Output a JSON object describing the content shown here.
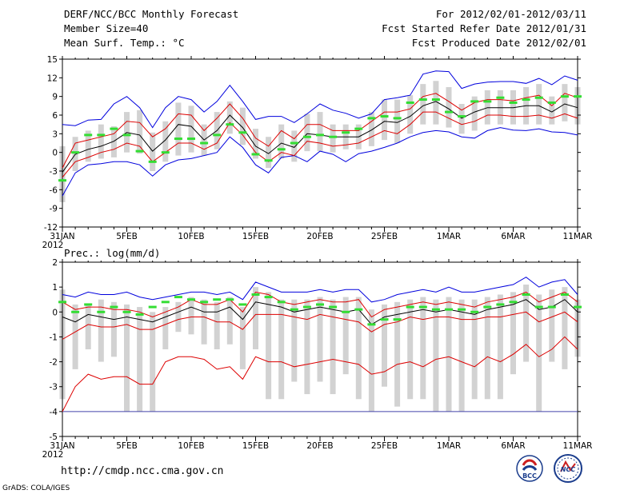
{
  "header": {
    "title": "DERF/NCC/BCC Monthly Forecast",
    "member_size": "Member Size=40",
    "variable1": "Mean Surf. Temp.: °C",
    "period": "For 2012/02/01-2012/03/11",
    "fcst_started": "Fcst Started Refer Date 2012/01/31",
    "fcst_produced": "Fcst Produced Date 2012/02/01"
  },
  "footer": {
    "url": "http://cmdp.ncc.cma.gov.cn",
    "grads": "GrADS: COLA/IGES",
    "logo_bcc": "BCC",
    "logo_ncc": "NCC"
  },
  "colors": {
    "ensemble_max": "#0000dd",
    "percentile": "#dd0000",
    "ensemble_mean": "#000000",
    "observation_marker": "#33dd33",
    "spread_bar": "#d2d2d2"
  },
  "chart_data": [
    {
      "type": "line",
      "title": "Mean Surf. Temp.: °C",
      "x_tick_labels": [
        "31JAN",
        "5FEB",
        "10FEB",
        "15FEB",
        "20FEB",
        "25FEB",
        "1MAR",
        "6MAR",
        "11MAR"
      ],
      "x_tick_days": [
        0,
        5,
        10,
        15,
        20,
        25,
        30,
        35,
        40
      ],
      "x_year_label": "2012",
      "ylim": [
        -12,
        15
      ],
      "y_ticks": [
        15,
        12,
        9,
        6,
        3,
        0,
        -3,
        -6,
        -9,
        -12
      ],
      "y_tick_labels": [
        "15",
        "12",
        "9",
        "6",
        "3",
        "0",
        "-3",
        "-6",
        "-9",
        "-12"
      ],
      "x": [
        0,
        1,
        2,
        3,
        4,
        5,
        6,
        7,
        8,
        9,
        10,
        11,
        12,
        13,
        14,
        15,
        16,
        17,
        18,
        19,
        20,
        21,
        22,
        23,
        24,
        25,
        26,
        27,
        28,
        29,
        30,
        31,
        32,
        33,
        34,
        35,
        36,
        37,
        38,
        39,
        40
      ],
      "series": [
        {
          "name": "ensemble-max",
          "color": "#0000dd",
          "values": [
            4.5,
            4.3,
            5.2,
            5.3,
            7.8,
            9.0,
            7.2,
            4.0,
            7.2,
            9.0,
            8.5,
            6.5,
            8.2,
            10.8,
            8.2,
            5.3,
            5.8,
            5.8,
            4.8,
            6.2,
            7.8,
            6.8,
            6.3,
            5.5,
            6.2,
            8.5,
            8.8,
            9.2,
            12.6,
            13.1,
            13.0,
            10.3,
            11.0,
            11.3,
            11.4,
            11.4,
            11.1,
            11.9,
            10.9,
            12.3,
            11.6
          ]
        },
        {
          "name": "ensemble-min",
          "color": "#0000dd",
          "values": [
            -7.0,
            -3.3,
            -2.0,
            -1.8,
            -1.5,
            -1.5,
            -2.0,
            -3.8,
            -2.0,
            -1.2,
            -1.0,
            -0.5,
            0.0,
            2.5,
            0.8,
            -2.0,
            -3.3,
            -0.8,
            -0.5,
            -1.5,
            0.2,
            -0.3,
            -1.5,
            -0.2,
            0.2,
            0.8,
            1.5,
            2.5,
            3.2,
            3.5,
            3.3,
            2.5,
            2.3,
            3.5,
            4.0,
            3.6,
            3.5,
            3.8,
            3.3,
            3.2,
            2.8
          ]
        },
        {
          "name": "upper-percentile",
          "color": "#dd0000",
          "values": [
            -2.5,
            1.5,
            2.0,
            2.5,
            3.0,
            5.0,
            4.8,
            2.5,
            3.8,
            6.2,
            6.0,
            3.5,
            5.5,
            7.8,
            5.5,
            2.3,
            1.0,
            3.5,
            2.2,
            4.5,
            4.5,
            3.5,
            3.5,
            3.5,
            5.0,
            6.5,
            6.5,
            7.0,
            9.0,
            9.5,
            8.2,
            6.8,
            8.0,
            8.5,
            8.5,
            8.3,
            8.8,
            9.2,
            7.5,
            9.5,
            8.8
          ]
        },
        {
          "name": "lower-percentile",
          "color": "#dd0000",
          "values": [
            -4.0,
            -1.5,
            -0.8,
            0.0,
            0.5,
            1.5,
            1.0,
            -1.5,
            0.0,
            1.5,
            1.5,
            0.5,
            1.5,
            4.8,
            2.8,
            0.0,
            -1.5,
            0.0,
            -0.5,
            1.8,
            1.5,
            1.0,
            1.2,
            1.5,
            2.5,
            3.5,
            3.0,
            4.5,
            6.5,
            6.5,
            5.5,
            4.5,
            5.0,
            6.0,
            6.0,
            5.8,
            5.8,
            6.0,
            5.5,
            6.2,
            5.5
          ]
        },
        {
          "name": "ensemble-mean",
          "color": "#000000",
          "values": [
            -3.2,
            -0.3,
            0.5,
            1.0,
            1.8,
            3.2,
            2.8,
            0.2,
            2.0,
            4.5,
            4.2,
            2.0,
            3.5,
            6.0,
            4.0,
            1.0,
            -0.2,
            1.5,
            0.8,
            3.0,
            2.8,
            2.5,
            2.5,
            2.5,
            3.6,
            5.0,
            4.8,
            5.8,
            7.5,
            8.2,
            7.0,
            5.5,
            6.5,
            7.2,
            7.2,
            7.2,
            7.5,
            7.5,
            6.5,
            7.8,
            7.2
          ]
        },
        {
          "name": "observed",
          "color": "#33dd33",
          "values": [
            -4.5,
            0.0,
            2.8,
            2.8,
            3.8,
            2.8,
            0.2,
            -1.5,
            0.0,
            2.2,
            2.2,
            1.5,
            2.8,
            4.5,
            3.2,
            -0.3,
            -1.3,
            0.5,
            1.5,
            2.5,
            2.8,
            2.5,
            3.2,
            3.8,
            5.5,
            5.8,
            5.5,
            8.0,
            8.5,
            8.5,
            6.5,
            5.8,
            8.2,
            8.2,
            8.8,
            8.0,
            8.5,
            8.8,
            8.0,
            9.0,
            9.0
          ]
        },
        {
          "name": "spread-top",
          "color": "#d2d2d2",
          "values": [
            1.0,
            2.5,
            3.5,
            4.5,
            4.2,
            6.5,
            6.8,
            3.2,
            5.0,
            8.0,
            7.5,
            4.5,
            6.5,
            8.2,
            7.2,
            3.8,
            2.5,
            4.5,
            3.5,
            6.2,
            6.5,
            4.5,
            4.5,
            4.5,
            6.5,
            8.5,
            8.5,
            9.2,
            11.0,
            11.5,
            10.5,
            7.8,
            9.0,
            10.0,
            10.0,
            10.0,
            10.5,
            11.0,
            9.0,
            11.0,
            10.5
          ]
        },
        {
          "name": "spread-bottom",
          "color": "#d2d2d2",
          "values": [
            -8.0,
            -3.0,
            -1.5,
            -1.0,
            -0.8,
            0.0,
            -0.2,
            -3.0,
            -1.5,
            -0.5,
            0.0,
            -0.5,
            0.5,
            3.0,
            1.2,
            -1.0,
            -2.5,
            -1.0,
            -1.5,
            0.2,
            0.2,
            0.0,
            0.5,
            0.5,
            1.0,
            2.0,
            1.5,
            3.0,
            4.5,
            4.5,
            4.0,
            3.0,
            3.5,
            4.5,
            4.5,
            4.5,
            4.5,
            4.5,
            4.5,
            5.0,
            4.5
          ]
        }
      ]
    },
    {
      "type": "line",
      "title": "Prec.: log(mm/d)",
      "x_tick_labels": [
        "31JAN",
        "5FEB",
        "10FEB",
        "15FEB",
        "20FEB",
        "25FEB",
        "1MAR",
        "6MAR",
        "11MAR"
      ],
      "x_tick_days": [
        0,
        5,
        10,
        15,
        20,
        25,
        30,
        35,
        40
      ],
      "x_year_label": "2012",
      "ylim": [
        -5,
        2
      ],
      "y_ticks": [
        2,
        1,
        0,
        -1,
        -2,
        -3,
        -4,
        -5
      ],
      "y_tick_labels": [
        "2",
        "1",
        "0",
        "-1",
        "-2",
        "-3",
        "-4",
        "-5"
      ],
      "x": [
        0,
        1,
        2,
        3,
        4,
        5,
        6,
        7,
        8,
        9,
        10,
        11,
        12,
        13,
        14,
        15,
        16,
        17,
        18,
        19,
        20,
        21,
        22,
        23,
        24,
        25,
        26,
        27,
        28,
        29,
        30,
        31,
        32,
        33,
        34,
        35,
        36,
        37,
        38,
        39,
        40
      ],
      "series": [
        {
          "name": "ensemble-max",
          "color": "#0000dd",
          "values": [
            0.7,
            0.6,
            0.8,
            0.7,
            0.7,
            0.8,
            0.6,
            0.5,
            0.6,
            0.7,
            0.8,
            0.8,
            0.7,
            0.8,
            0.5,
            1.2,
            1.0,
            0.8,
            0.8,
            0.8,
            0.9,
            0.8,
            0.9,
            0.9,
            0.4,
            0.5,
            0.7,
            0.8,
            0.9,
            0.8,
            1.0,
            0.8,
            0.8,
            0.9,
            1.0,
            1.1,
            1.4,
            1.0,
            1.2,
            1.3,
            0.7
          ]
        },
        {
          "name": "ensemble-min",
          "color": "#dd0000",
          "values": [
            -4.0,
            -3.0,
            -2.5,
            -2.7,
            -2.6,
            -2.6,
            -2.9,
            -2.9,
            -2.0,
            -1.8,
            -1.8,
            -1.9,
            -2.3,
            -2.2,
            -2.7,
            -1.8,
            -2.0,
            -2.0,
            -2.2,
            -2.1,
            -2.0,
            -1.9,
            -2.0,
            -2.1,
            -2.5,
            -2.4,
            -2.1,
            -2.0,
            -2.2,
            -1.9,
            -1.8,
            -2.0,
            -2.2,
            -1.8,
            -2.0,
            -1.7,
            -1.3,
            -1.8,
            -1.5,
            -1.0,
            -1.5
          ]
        },
        {
          "name": "upper-percentile",
          "color": "#dd0000",
          "values": [
            0.4,
            0.1,
            0.2,
            0.2,
            0.1,
            0.1,
            0.0,
            -0.2,
            0.0,
            0.2,
            0.5,
            0.3,
            0.3,
            0.5,
            0.0,
            0.8,
            0.7,
            0.4,
            0.3,
            0.4,
            0.5,
            0.4,
            0.4,
            0.5,
            -0.2,
            0.1,
            0.2,
            0.3,
            0.4,
            0.3,
            0.4,
            0.3,
            0.2,
            0.4,
            0.5,
            0.6,
            0.8,
            0.4,
            0.6,
            0.8,
            0.4
          ]
        },
        {
          "name": "lower-percentile",
          "color": "#dd0000",
          "values": [
            -1.1,
            -0.8,
            -0.5,
            -0.6,
            -0.6,
            -0.5,
            -0.7,
            -0.7,
            -0.5,
            -0.3,
            -0.2,
            -0.2,
            -0.4,
            -0.4,
            -0.7,
            -0.1,
            -0.1,
            -0.1,
            -0.2,
            -0.3,
            -0.1,
            -0.2,
            -0.3,
            -0.4,
            -0.8,
            -0.5,
            -0.4,
            -0.2,
            -0.3,
            -0.2,
            -0.2,
            -0.3,
            -0.3,
            -0.2,
            -0.2,
            -0.1,
            0.0,
            -0.4,
            -0.2,
            0.0,
            -0.4
          ]
        },
        {
          "name": "ensemble-mean",
          "color": "#000000",
          "values": [
            -0.2,
            -0.4,
            -0.1,
            -0.2,
            -0.3,
            -0.2,
            -0.3,
            -0.4,
            -0.2,
            0.0,
            0.2,
            0.0,
            0.0,
            0.2,
            -0.3,
            0.4,
            0.3,
            0.2,
            0.0,
            0.1,
            0.2,
            0.1,
            0.0,
            0.1,
            -0.5,
            -0.2,
            -0.1,
            0.0,
            0.1,
            0.0,
            0.1,
            0.0,
            -0.1,
            0.1,
            0.2,
            0.3,
            0.5,
            0.1,
            0.2,
            0.5,
            0.0
          ]
        },
        {
          "name": "observed",
          "color": "#33dd33",
          "values": [
            0.4,
            0.0,
            0.3,
            0.0,
            0.2,
            0.0,
            -0.1,
            0.2,
            0.4,
            0.6,
            0.5,
            0.4,
            0.5,
            0.5,
            0.3,
            0.7,
            0.6,
            0.4,
            0.1,
            0.2,
            0.3,
            0.2,
            0.0,
            0.1,
            -0.5,
            -0.3,
            -0.3,
            0.2,
            0.2,
            0.1,
            0.1,
            0.1,
            0.0,
            0.2,
            0.3,
            0.4,
            0.7,
            0.2,
            0.2,
            0.7,
            0.2
          ]
        },
        {
          "name": "floor-line",
          "color": "#4444aa",
          "values": [
            -4.0,
            -4.0,
            -4.0,
            -4.0,
            -4.0,
            -4.0,
            -4.0,
            -4.0,
            -4.0,
            -4.0,
            -4.0,
            -4.0,
            -4.0,
            -4.0,
            -4.0,
            -4.0,
            -4.0,
            -4.0,
            -4.0,
            -4.0,
            -4.0,
            -4.0,
            -4.0,
            -4.0,
            -4.0,
            -4.0,
            -4.0,
            -4.0,
            -4.0,
            -4.0,
            -4.0,
            -4.0,
            -4.0,
            -4.0,
            -4.0,
            -4.0,
            -4.0,
            -4.0,
            -4.0,
            -4.0,
            -4.0
          ]
        },
        {
          "name": "spread-top",
          "color": "#d2d2d2",
          "values": [
            0.9,
            0.3,
            0.3,
            0.5,
            0.4,
            0.3,
            0.2,
            0.0,
            0.2,
            0.4,
            0.6,
            0.5,
            0.4,
            0.6,
            0.2,
            1.0,
            0.8,
            0.5,
            0.5,
            0.5,
            0.6,
            0.5,
            0.6,
            0.6,
            0.1,
            0.3,
            0.4,
            0.5,
            0.6,
            0.5,
            0.6,
            0.5,
            0.5,
            0.6,
            0.7,
            0.8,
            1.1,
            0.7,
            0.9,
            1.0,
            0.5
          ]
        },
        {
          "name": "spread-bottom",
          "color": "#d2d2d2",
          "values": [
            -3.5,
            -2.3,
            -1.5,
            -2.0,
            -1.8,
            -4.0,
            -4.0,
            -4.0,
            -1.5,
            -0.8,
            -0.9,
            -1.3,
            -1.5,
            -1.3,
            -2.3,
            -1.5,
            -3.5,
            -3.5,
            -2.8,
            -3.3,
            -2.8,
            -3.3,
            -2.5,
            -3.5,
            -4.0,
            -3.0,
            -3.8,
            -3.5,
            -3.5,
            -4.0,
            -4.0,
            -4.0,
            -3.5,
            -3.5,
            -3.5,
            -2.5,
            -2.0,
            -4.0,
            -2.0,
            -2.3,
            -1.8
          ]
        }
      ]
    }
  ]
}
